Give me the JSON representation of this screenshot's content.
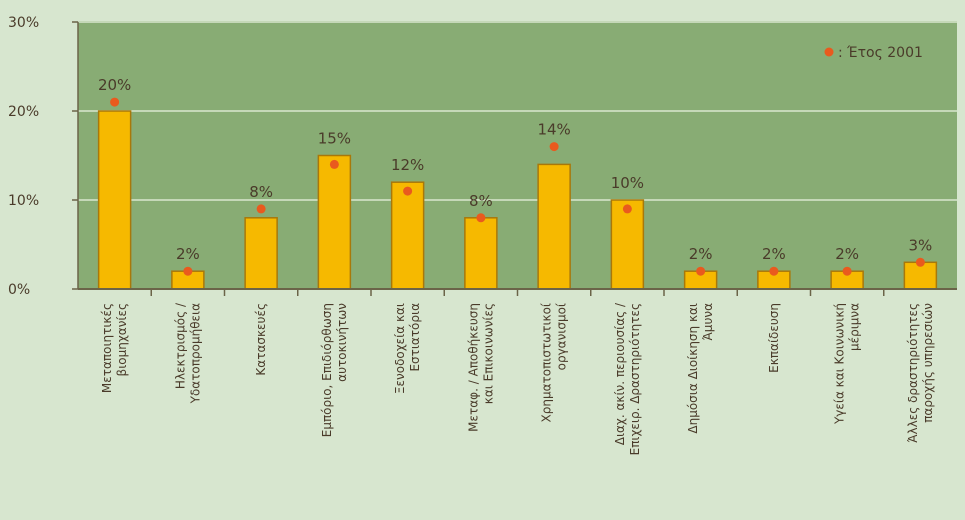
{
  "chart_data": {
    "type": "bar",
    "title": "",
    "xlabel": "",
    "ylabel": "",
    "ylim": [
      0,
      30
    ],
    "yticks": [
      "0%",
      "10%",
      "20%",
      "30%"
    ],
    "grid": true,
    "legend_position": "top-right",
    "categories": [
      [
        "Μεταποιητικές",
        "βιομηχανίες"
      ],
      [
        "Ηλεκτρισμός /",
        "Υδατοπρομήθεια"
      ],
      [
        "Κατασκευές"
      ],
      [
        "Εμπόριο, Επιδιόρθωση",
        "αυτοκινήτων"
      ],
      [
        "Ξενοδοχεία και",
        "Εστιατόρια"
      ],
      [
        "Μεταφ. / Αποθήκευση",
        "και Επικοινωνίες"
      ],
      [
        "Χρηματοπιστωτικοί",
        "οργανισμοί"
      ],
      [
        "Διαχ. ακίν. περιουσίας /",
        "Επιχειρ. Δραστηριότητες"
      ],
      [
        "Δημόσια Διοίκηση και",
        "Άμυνα"
      ],
      [
        "Εκπαίδευση"
      ],
      [
        "Υγεία και Κοινωνική",
        "μέριμνα"
      ],
      [
        "Άλλες δραστηριότητες",
        "παροχής υπηρεσιών"
      ]
    ],
    "series": [
      {
        "type": "bar",
        "values": [
          20,
          2,
          8,
          15,
          12,
          8,
          14,
          10,
          2,
          2,
          2,
          3
        ],
        "labels": [
          "20%",
          "2%",
          "8%",
          "15%",
          "12%",
          "8%",
          "14%",
          "10%",
          "2%",
          "2%",
          "2%",
          "3%"
        ]
      },
      {
        "name": ": Έτος 2001",
        "type": "scatter",
        "values": [
          21,
          2,
          9,
          14,
          11,
          8,
          16,
          9,
          2,
          2,
          2,
          3
        ]
      }
    ]
  },
  "colors": {
    "plot_bg": "#88ac74",
    "page_bg": "#d7e6cf",
    "bar_fill": "#f6b900",
    "bar_stroke": "#a8780a",
    "marker": "#e95a1e",
    "grid": "#c5d8b8",
    "axis": "#6b6448",
    "text": "#4a3b2a"
  }
}
